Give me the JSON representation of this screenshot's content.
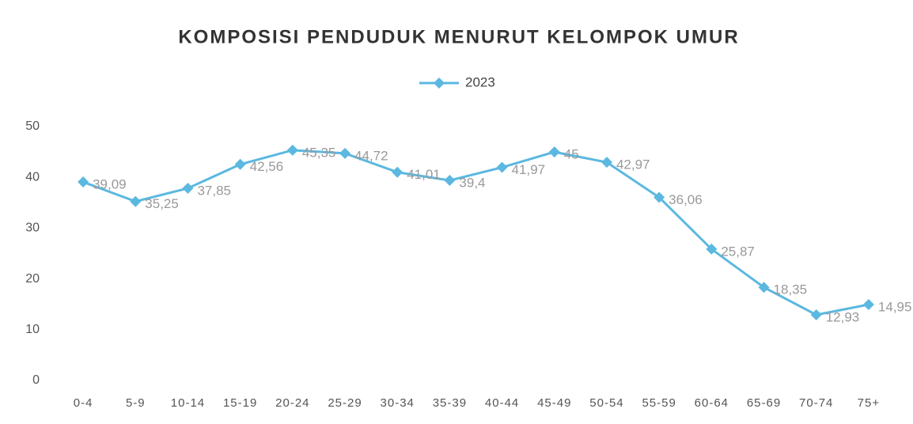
{
  "chart_data": {
    "type": "line",
    "title": "KOMPOSISI PENDUDUK MENURUT KELOMPOK UMUR",
    "categories": [
      "0-4",
      "5-9",
      "10-14",
      "15-19",
      "20-24",
      "25-29",
      "30-34",
      "35-39",
      "40-44",
      "45-49",
      "50-54",
      "55-59",
      "60-64",
      "65-69",
      "70-74",
      "75+"
    ],
    "series": [
      {
        "name": "2023",
        "color": "#5bb8e0",
        "values": [
          39.09,
          35.25,
          37.85,
          42.56,
          45.35,
          44.72,
          41.01,
          39.4,
          41.97,
          45,
          42.97,
          36.06,
          25.87,
          18.35,
          12.93,
          14.95
        ],
        "value_labels": [
          "39,09",
          "35,25",
          "37,85",
          "42,56",
          "45,35",
          "44,72",
          "41,01",
          "39,4",
          "41,97",
          "45",
          "42,97",
          "36,06",
          "25,87",
          "18,35",
          "12,93",
          "14,95"
        ]
      }
    ],
    "ylim": [
      0,
      50
    ],
    "yticks": [
      0,
      10,
      20,
      30,
      40,
      50
    ],
    "grid": false,
    "legend": "top"
  }
}
